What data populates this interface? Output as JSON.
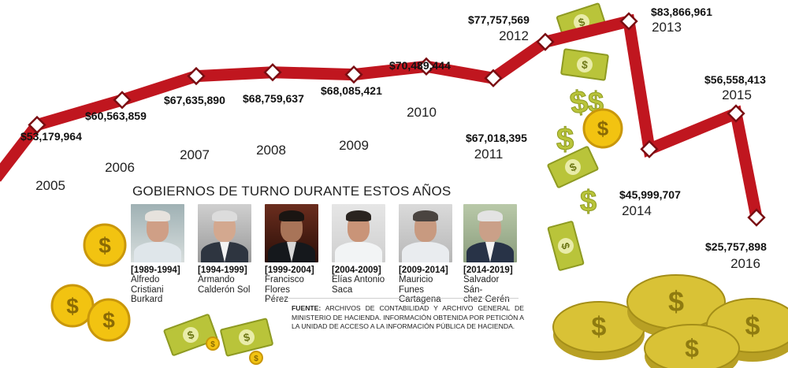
{
  "chart_data": {
    "type": "line",
    "x": [
      "2005",
      "2006",
      "2007",
      "2008",
      "2009",
      "2010",
      "2011",
      "2012",
      "2013",
      "2014",
      "2015",
      "2016"
    ],
    "values": [
      53179964,
      60563859,
      67635890,
      68759637,
      68085421,
      70489444,
      67018395,
      77757569,
      83866961,
      45999707,
      56558413,
      25757898
    ],
    "labels": [
      "$53,179,964",
      "$60,563,859",
      "$67,635,890",
      "$68,759,637",
      "$68,085,421",
      "$70,489,444",
      "$67,018,395",
      "$77,757,569",
      "$83,866,961",
      "$45,999,707",
      "$56,558,413",
      "$25,757,898"
    ],
    "line_color": "#c0161f",
    "grid": false
  },
  "governments": {
    "title": "GOBIERNOS DE TURNO DURANTE ESTOS AÑOS",
    "items": [
      {
        "period": "[1989-1994]",
        "name1": "Alfredo Cristiani",
        "name2": "Burkard"
      },
      {
        "period": "[1994-1999]",
        "name1": "Armando",
        "name2": "Calderón Sol"
      },
      {
        "period": "[1999-2004]",
        "name1": "Francisco Flores",
        "name2": "Pérez"
      },
      {
        "period": "[2004-2009]",
        "name1": "Elías Antonio",
        "name2": "Saca"
      },
      {
        "period": "[2009-2014]",
        "name1": "Mauricio Funes",
        "name2": "Cartagena"
      },
      {
        "period": "[2014-2019]",
        "name1": "Salvador Sán-",
        "name2": "chez Cerén"
      }
    ]
  },
  "source": {
    "label": "FUENTE:",
    "text": "ARCHIVOS DE CONTABILIDAD Y ARCHIVO GENERAL DE MINISTERIO DE HACIENDA. INFORMACIÓN OBTENIDA POR PETICIÓN A LA UNIDAD DE ACCESO A LA INFORMACIÓN PÚBLICA DE HACIENDA."
  },
  "decor": {
    "coin_symbol": "$",
    "coin_color": "#f2c311",
    "bill_color": "#b9c43a",
    "icons": [
      "dollar-coin-icon",
      "dollar-bill-icon",
      "dollar-sign-icon",
      "coin-stack-icon"
    ]
  }
}
